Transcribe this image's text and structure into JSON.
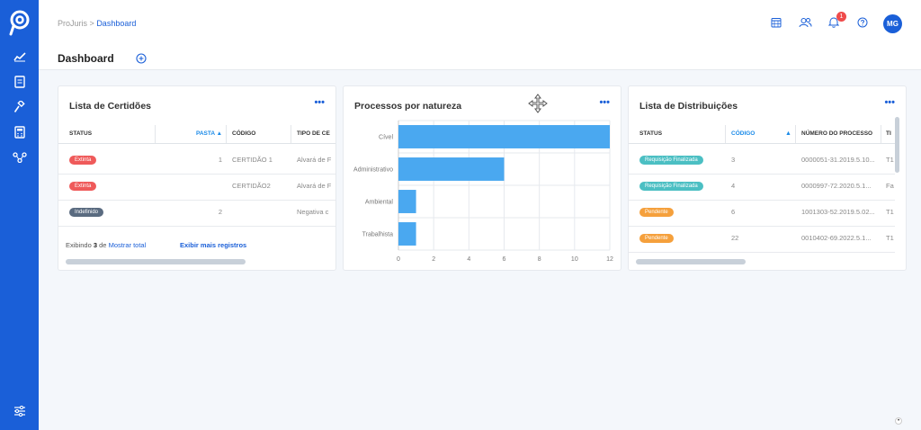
{
  "app": {
    "name": "ProJuris"
  },
  "breadcrumb": {
    "root": "ProJuris",
    "separator": ">",
    "current": "Dashboard"
  },
  "topbar": {
    "notifications_count": "1",
    "avatar_initials": "MG"
  },
  "page": {
    "title": "Dashboard"
  },
  "certidoes": {
    "title": "Lista de Certidões",
    "menu": "•••",
    "columns": [
      "STATUS",
      "PASTA",
      "CÓDIGO",
      "TIPO DE CE"
    ],
    "rows": [
      {
        "status": "Extinta",
        "pasta": "1",
        "codigo": "CERTIDÃO 1",
        "tipo": "Alvará de F"
      },
      {
        "status": "Extinta",
        "pasta": "",
        "codigo": "CERTIDÃO2",
        "tipo": "Alvará de F"
      },
      {
        "status": "Indefinido",
        "pasta": "2",
        "codigo": "",
        "tipo": "Negativa c"
      }
    ],
    "footer": {
      "prefix": "Exibindo",
      "count": "3",
      "of": "de",
      "show_total": "Mostrar total",
      "more": "Exibir mais registros"
    }
  },
  "natureza": {
    "title": "Processos por natureza",
    "menu": "•••"
  },
  "chart_data": {
    "type": "bar",
    "orientation": "horizontal",
    "title": "Processos por natureza",
    "categories": [
      "Cível",
      "Administrativo",
      "Ambiental",
      "Trabalhista"
    ],
    "values": [
      12,
      6,
      1,
      1
    ],
    "xlim": [
      0,
      12
    ],
    "xticks": [
      "0",
      "2",
      "4",
      "6",
      "8",
      "10",
      "12"
    ],
    "grid": true,
    "color": "#4aa8f0"
  },
  "distribuicoes": {
    "title": "Lista de Distribuições",
    "menu": "•••",
    "columns": [
      "STATUS",
      "CÓDIGO",
      "NÚMERO DO PROCESSO",
      "TI"
    ],
    "rows": [
      {
        "status": "Requisição Finalizada",
        "codigo": "3",
        "numero": "0000051-31.2019.5.10...",
        "extra": "T1"
      },
      {
        "status": "Requisição Finalizada",
        "codigo": "4",
        "numero": "0000997-72.2020.5.1...",
        "extra": "Fa"
      },
      {
        "status": "Pendente",
        "codigo": "6",
        "numero": "1001303-52.2019.5.02...",
        "extra": "T1"
      },
      {
        "status": "Pendente",
        "codigo": "22",
        "numero": "0010402-69.2022.5.1...",
        "extra": "T1"
      }
    ]
  },
  "colors": {
    "primary": "#1a5fd8",
    "extinta": "#ef5a5a",
    "indefinido": "#5a6b80",
    "finalizada": "#4bbfc3",
    "pendente": "#f5a03c"
  }
}
